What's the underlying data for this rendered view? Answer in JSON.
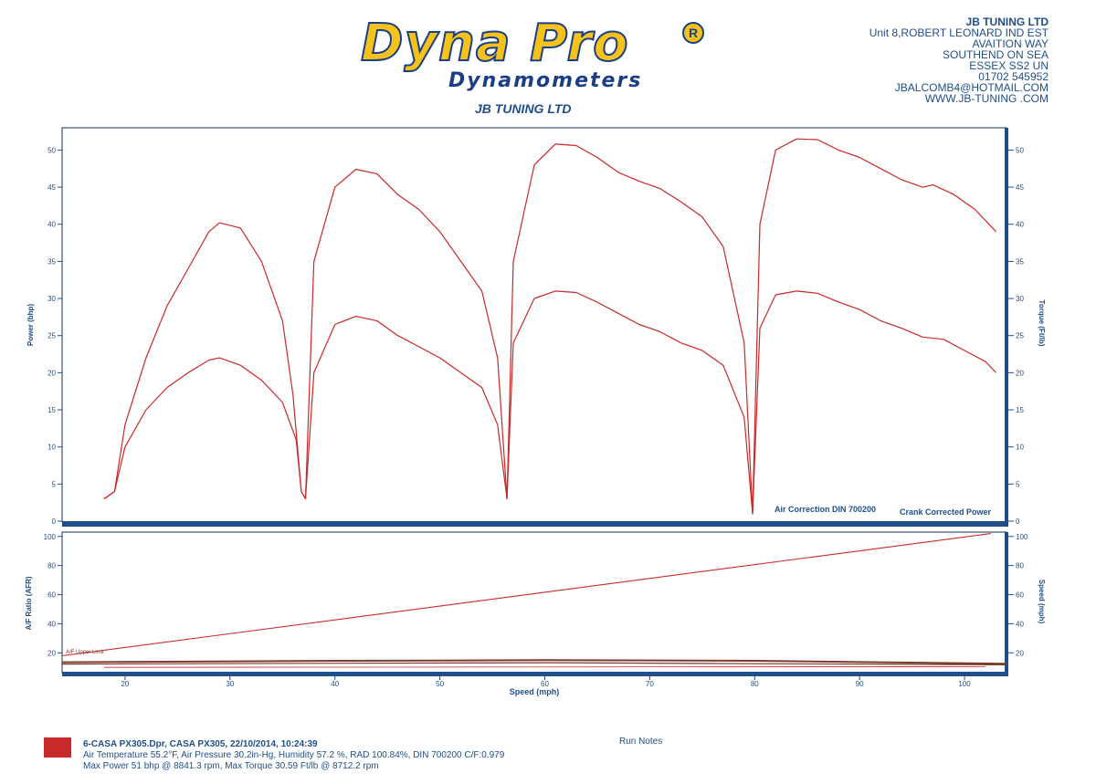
{
  "header": {
    "brand": "Dyna Pro",
    "brand_sub": "Dynamometers",
    "subtitle": "JB TUNING LTD",
    "address": [
      "JB TUNING LTD",
      "Unit 8,ROBERT LEONARD IND EST",
      "AVAITION WAY",
      "SOUTHEND ON SEA",
      "ESSEX SS2 UN",
      "01702 545952",
      "JBALCOMB4@HOTMAIL.COM",
      "WWW.JB-TUNING .COM"
    ]
  },
  "colors": {
    "curve": "#c8292a",
    "axis": "#1f4f8a",
    "frame": "#0d2f5c",
    "afr": "#7a3b2a"
  },
  "chart_data": [
    {
      "type": "line",
      "x_range": [
        14,
        104
      ],
      "ylabel_left": "Power (bhp)",
      "ylabel_right": "Torque (Ft/lb)",
      "ylim_left": [
        0,
        53
      ],
      "ylim_right": [
        0,
        53
      ],
      "yticks": [
        0,
        5,
        10,
        15,
        20,
        25,
        30,
        35,
        40,
        45,
        50
      ],
      "annotations": [
        "Air Correction DIN 700200",
        "Crank Corrected Power"
      ],
      "series": [
        {
          "points": [
            [
              18,
              3
            ],
            [
              19,
              4
            ],
            [
              20,
              13
            ],
            [
              22,
              22
            ],
            [
              24,
              29
            ],
            [
              26,
              34
            ],
            [
              28,
              39
            ],
            [
              29,
              40.2
            ],
            [
              31,
              39.5
            ],
            [
              33,
              35
            ],
            [
              35,
              27
            ],
            [
              36,
              17
            ],
            [
              36.8,
              4
            ],
            [
              37.2,
              3
            ],
            [
              38,
              35
            ],
            [
              40,
              45
            ],
            [
              42,
              47.4
            ],
            [
              44,
              46.8
            ],
            [
              46,
              44
            ],
            [
              48,
              42
            ],
            [
              50,
              39
            ],
            [
              52,
              35
            ],
            [
              54,
              31
            ],
            [
              55.5,
              22
            ],
            [
              56.4,
              3
            ],
            [
              57,
              35
            ],
            [
              59,
              48
            ],
            [
              61,
              50.8
            ],
            [
              63,
              50.6
            ],
            [
              65,
              49
            ],
            [
              67,
              47
            ],
            [
              69,
              45.8
            ],
            [
              71,
              44.8
            ],
            [
              73,
              43
            ],
            [
              75,
              41
            ],
            [
              77,
              37
            ],
            [
              79,
              24
            ],
            [
              79.8,
              1
            ],
            [
              80.5,
              40
            ],
            [
              82,
              50
            ],
            [
              84,
              51.5
            ],
            [
              86,
              51.4
            ],
            [
              88,
              50
            ],
            [
              90,
              49
            ],
            [
              92,
              47.5
            ],
            [
              94,
              46
            ],
            [
              96,
              45
            ],
            [
              97,
              45.3
            ],
            [
              99,
              44
            ],
            [
              101,
              42
            ],
            [
              103,
              39
            ]
          ]
        },
        {
          "points": [
            [
              18,
              3
            ],
            [
              19,
              4
            ],
            [
              20,
              10
            ],
            [
              22,
              15
            ],
            [
              24,
              18
            ],
            [
              26,
              20
            ],
            [
              28,
              21.7
            ],
            [
              29,
              22
            ],
            [
              31,
              21
            ],
            [
              33,
              19
            ],
            [
              35,
              16
            ],
            [
              36.3,
              11
            ],
            [
              36.8,
              4
            ],
            [
              37.2,
              3
            ],
            [
              38,
              20
            ],
            [
              40,
              26.5
            ],
            [
              42,
              27.6
            ],
            [
              44,
              27
            ],
            [
              46,
              25
            ],
            [
              48,
              23.5
            ],
            [
              50,
              22
            ],
            [
              52,
              20
            ],
            [
              54,
              18
            ],
            [
              55.5,
              13
            ],
            [
              56.4,
              3
            ],
            [
              57,
              24
            ],
            [
              59,
              30
            ],
            [
              61,
              31
            ],
            [
              63,
              30.8
            ],
            [
              65,
              29.5
            ],
            [
              67,
              28
            ],
            [
              69,
              26.5
            ],
            [
              71,
              25.5
            ],
            [
              73,
              24
            ],
            [
              75,
              23
            ],
            [
              77,
              21
            ],
            [
              79,
              14
            ],
            [
              79.8,
              1
            ],
            [
              80.5,
              26
            ],
            [
              82,
              30.5
            ],
            [
              84,
              31
            ],
            [
              86,
              30.7
            ],
            [
              88,
              29.5
            ],
            [
              90,
              28.5
            ],
            [
              92,
              27
            ],
            [
              94,
              26
            ],
            [
              96,
              24.8
            ],
            [
              98,
              24.5
            ],
            [
              100,
              23
            ],
            [
              102,
              21.5
            ],
            [
              103,
              20
            ]
          ]
        }
      ]
    },
    {
      "type": "line",
      "x_range": [
        14,
        104
      ],
      "xlabel": "Speed (mph)",
      "xticks": [
        20,
        30,
        40,
        50,
        60,
        70,
        80,
        90,
        100
      ],
      "ylabel_left": "A/F Ratio (AFR)",
      "ylabel_right": "Speed (mph)",
      "ylim_left": [
        7,
        103
      ],
      "yticks_left": [
        20,
        40,
        60,
        80,
        100
      ],
      "ylim_right": [
        7,
        103
      ],
      "yticks_right": [
        20,
        40,
        60,
        80,
        100
      ],
      "annotations": [
        "A/F Upper Limit"
      ],
      "series": [
        {
          "points": [
            [
              14,
              18
            ],
            [
              102.5,
              102
            ]
          ]
        },
        {
          "points": [
            [
              14,
              13.5
            ],
            [
              40,
              14.5
            ],
            [
              60,
              15
            ],
            [
              80,
              14.5
            ],
            [
              104,
              12.5
            ]
          ]
        },
        {
          "points": [
            [
              14,
              12.3
            ],
            [
              60,
              13.2
            ],
            [
              104,
              11.8
            ]
          ]
        },
        {
          "points": [
            [
              18,
              10
            ],
            [
              102,
              10.5
            ]
          ]
        }
      ]
    }
  ],
  "footer": {
    "run_file": "6-CASA PX305.Dpr,   CASA PX305,   22/10/2014,   10:24:39",
    "conditions": "Air Temperature 55.2°F, Air Pressure 30.2in-Hg, Humidity 57.2 %, RAD 100.84%,   DIN 700200  C/F:0.979",
    "max_values": "Max Power 51 bhp @ 8841.3 rpm, Max Torque 30.59 Ft/lb @ 8712.2 rpm",
    "run_notes_label": "Run Notes"
  }
}
